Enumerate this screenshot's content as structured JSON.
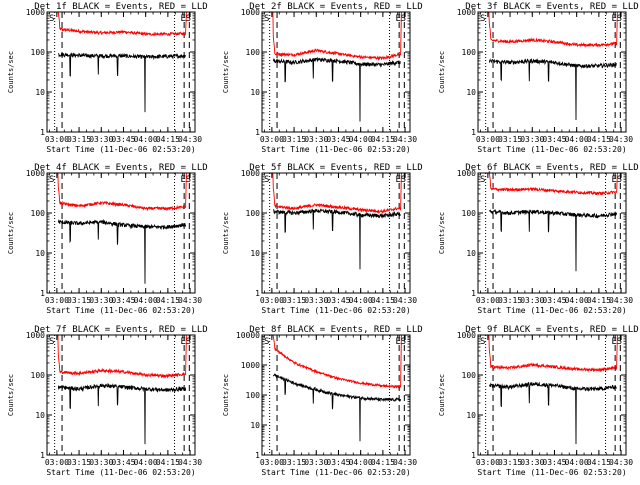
{
  "figure": {
    "x_tick_labels": [
      "03:00",
      "03:15",
      "03:30",
      "03:45",
      "04:00",
      "04:15",
      "04:30"
    ],
    "y_tick_labels_small": [
      "1",
      "10",
      "100",
      "1000"
    ],
    "y_tick_labels_large": [
      "1",
      "10",
      "100",
      "1000",
      "10000"
    ],
    "ylabel": "Counts/sec",
    "xlabel": "Start Time (11-Dec-06 02:53:20)",
    "marker_start": "S",
    "marker_end": "E",
    "colors": {
      "events": "#000000",
      "lld": "#ff0000",
      "axes": "#000000",
      "background": "#ffffff"
    }
  },
  "chart_data": [
    {
      "type": "line",
      "title": "Det 1f BLACK = Events, RED = LLD",
      "ylim": [
        1,
        1000
      ],
      "yscale": "log",
      "xlim": [
        "02:53:20",
        "04:33:20"
      ],
      "grid": false,
      "x": [
        "03:00",
        "03:15",
        "03:30",
        "03:45",
        "04:00",
        "04:15",
        "04:25"
      ],
      "series": [
        {
          "name": "LLD",
          "values": [
            380,
            330,
            300,
            320,
            280,
            280,
            290
          ]
        },
        {
          "name": "Events",
          "values": [
            88,
            82,
            80,
            80,
            75,
            78,
            80
          ]
        }
      ],
      "annotations": [
        "S",
        "E"
      ]
    },
    {
      "type": "line",
      "title": "Det 2f BLACK = Events, RED = LLD",
      "ylim": [
        1,
        1000
      ],
      "yscale": "log",
      "xlim": [
        "02:53:20",
        "04:33:20"
      ],
      "grid": false,
      "x": [
        "03:00",
        "03:15",
        "03:30",
        "03:45",
        "04:00",
        "04:15",
        "04:25"
      ],
      "series": [
        {
          "name": "LLD",
          "values": [
            90,
            85,
            110,
            90,
            75,
            70,
            85
          ]
        },
        {
          "name": "Events",
          "values": [
            60,
            55,
            65,
            60,
            50,
            48,
            55
          ]
        }
      ],
      "annotations": [
        "S",
        "E"
      ]
    },
    {
      "type": "line",
      "title": "Det 3f BLACK = Events, RED = LLD",
      "ylim": [
        1,
        1000
      ],
      "yscale": "log",
      "xlim": [
        "02:53:20",
        "04:33:20"
      ],
      "grid": false,
      "x": [
        "03:00",
        "03:15",
        "03:30",
        "03:45",
        "04:00",
        "04:15",
        "04:25"
      ],
      "series": [
        {
          "name": "LLD",
          "values": [
            200,
            180,
            200,
            180,
            150,
            150,
            160
          ]
        },
        {
          "name": "Events",
          "values": [
            60,
            55,
            60,
            55,
            45,
            45,
            48
          ]
        }
      ],
      "annotations": [
        "S",
        "E"
      ]
    },
    {
      "type": "line",
      "title": "Det 4f BLACK = Events, RED = LLD",
      "ylim": [
        1,
        1000
      ],
      "yscale": "log",
      "xlim": [
        "02:53:20",
        "04:33:20"
      ],
      "grid": false,
      "x": [
        "03:00",
        "03:15",
        "03:30",
        "03:45",
        "04:00",
        "04:15",
        "04:25"
      ],
      "series": [
        {
          "name": "LLD",
          "values": [
            180,
            150,
            180,
            160,
            130,
            130,
            140
          ]
        },
        {
          "name": "Events",
          "values": [
            60,
            55,
            60,
            50,
            45,
            45,
            50
          ]
        }
      ],
      "annotations": [
        "S",
        "E"
      ]
    },
    {
      "type": "line",
      "title": "Det 5f BLACK = Events, RED = LLD",
      "ylim": [
        1,
        1000
      ],
      "yscale": "log",
      "xlim": [
        "02:53:20",
        "04:33:20"
      ],
      "grid": false,
      "x": [
        "03:00",
        "03:15",
        "03:30",
        "03:45",
        "04:00",
        "04:15",
        "04:25"
      ],
      "series": [
        {
          "name": "LLD",
          "values": [
            150,
            130,
            160,
            140,
            120,
            110,
            130
          ]
        },
        {
          "name": "Events",
          "values": [
            110,
            100,
            115,
            105,
            90,
            85,
            95
          ]
        }
      ],
      "annotations": [
        "S",
        "E"
      ]
    },
    {
      "type": "line",
      "title": "Det 6f BLACK = Events, RED = LLD",
      "ylim": [
        1,
        1000
      ],
      "yscale": "log",
      "xlim": [
        "02:53:20",
        "04:33:20"
      ],
      "grid": false,
      "x": [
        "03:00",
        "03:15",
        "03:30",
        "03:45",
        "04:00",
        "04:15",
        "04:25"
      ],
      "series": [
        {
          "name": "LLD",
          "values": [
            400,
            380,
            400,
            360,
            330,
            310,
            330
          ]
        },
        {
          "name": "Events",
          "values": [
            110,
            100,
            110,
            100,
            90,
            85,
            95
          ]
        }
      ],
      "annotations": [
        "S",
        "E"
      ]
    },
    {
      "type": "line",
      "title": "Det 7f BLACK = Events, RED = LLD",
      "ylim": [
        1,
        1000
      ],
      "yscale": "log",
      "xlim": [
        "02:53:20",
        "04:33:20"
      ],
      "grid": false,
      "x": [
        "03:00",
        "03:15",
        "03:30",
        "03:45",
        "04:00",
        "04:15",
        "04:25"
      ],
      "series": [
        {
          "name": "LLD",
          "values": [
            120,
            110,
            130,
            120,
            100,
            95,
            105
          ]
        },
        {
          "name": "Events",
          "values": [
            50,
            45,
            55,
            50,
            45,
            42,
            45
          ]
        }
      ],
      "annotations": [
        "S",
        "E"
      ]
    },
    {
      "type": "line",
      "title": "Det 8f BLACK = Events, RED = LLD",
      "ylim": [
        1,
        10000
      ],
      "yscale": "log",
      "xlim": [
        "02:53:20",
        "04:33:20"
      ],
      "grid": false,
      "x": [
        "03:00",
        "03:15",
        "03:30",
        "03:45",
        "04:00",
        "04:15",
        "04:25"
      ],
      "series": [
        {
          "name": "LLD",
          "values": [
            4000,
            1200,
            600,
            350,
            250,
            200,
            190
          ]
        },
        {
          "name": "Events",
          "values": [
            500,
            250,
            150,
            100,
            80,
            70,
            70
          ]
        }
      ],
      "annotations": [
        "S",
        "E"
      ]
    },
    {
      "type": "line",
      "title": "Det 9f BLACK = Events, RED = LLD",
      "ylim": [
        1,
        1000
      ],
      "yscale": "log",
      "xlim": [
        "02:53:20",
        "04:33:20"
      ],
      "grid": false,
      "x": [
        "03:00",
        "03:15",
        "03:30",
        "03:45",
        "04:00",
        "04:15",
        "04:25"
      ],
      "series": [
        {
          "name": "LLD",
          "values": [
            160,
            150,
            180,
            160,
            140,
            135,
            150
          ]
        },
        {
          "name": "Events",
          "values": [
            55,
            50,
            60,
            55,
            45,
            45,
            50
          ]
        }
      ],
      "annotations": [
        "S",
        "E"
      ]
    }
  ]
}
